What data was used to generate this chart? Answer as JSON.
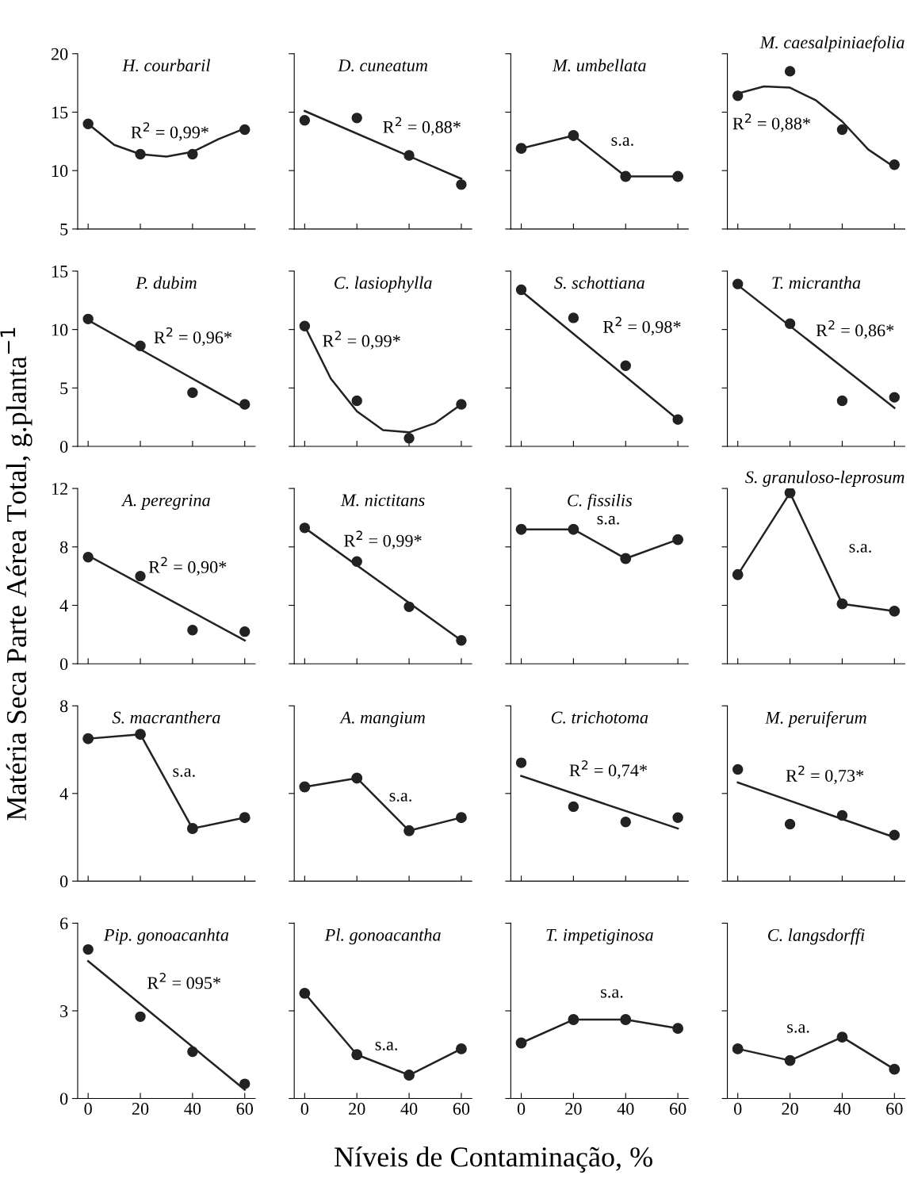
{
  "chart_data": [
    {
      "type": "scatter",
      "title": "H. courbaril",
      "ylabel": "Matéria Seca Parte Aérea Total, g.planta$^{−1}$",
      "x": [
        0,
        20,
        40,
        60
      ],
      "xlim": [
        -4,
        64
      ],
      "xticks": [
        0,
        20,
        40,
        60
      ],
      "ylim": [
        5,
        20
      ],
      "yticks": [
        5,
        10,
        15,
        20
      ],
      "tick_labels": "y",
      "series": [
        {
          "color": "#222222",
          "marker": "circle",
          "values": [
            14.0,
            11.4,
            11.4,
            13.5
          ]
        },
        {
          "type": "line",
          "color": "#222222",
          "x": [
            0,
            10,
            20,
            30,
            40,
            50,
            60
          ],
          "values": [
            14.0,
            12.2,
            11.4,
            11.2,
            11.6,
            12.7,
            13.6
          ]
        }
      ],
      "annotations": [
        "R$^{2}$ = 0,99*"
      ]
    },
    {
      "type": "scatter",
      "title": "D. cuneatum",
      "x": [
        0,
        20,
        40,
        60
      ],
      "xlim": [
        -4,
        64
      ],
      "xticks": [
        0,
        20,
        40,
        60
      ],
      "ylim": [
        5,
        20
      ],
      "yticks": [
        5,
        10,
        15,
        20
      ],
      "tick_labels": false,
      "series": [
        {
          "color": "#222222",
          "marker": "circle",
          "values": [
            14.3,
            14.5,
            11.3,
            8.8
          ]
        },
        {
          "type": "line",
          "color": "#222222",
          "x": [
            0,
            60
          ],
          "values": [
            15.1,
            9.3
          ]
        }
      ],
      "annotations": [
        "R$^{2}$ = 0,88*"
      ]
    },
    {
      "type": "line",
      "title": "M. umbellata",
      "x": [
        0,
        20,
        40,
        60
      ],
      "xlim": [
        -4,
        64
      ],
      "xticks": [
        0,
        20,
        40,
        60
      ],
      "ylim": [
        5,
        20
      ],
      "yticks": [
        5,
        10,
        15,
        20
      ],
      "tick_labels": false,
      "series": [
        {
          "color": "#222222",
          "marker": "circle",
          "values": [
            11.9,
            13.0,
            9.5,
            9.5
          ]
        }
      ],
      "annotations": [
        "s.a."
      ]
    },
    {
      "type": "scatter",
      "title": "M. caesalpiniaefolia",
      "x": [
        0,
        20,
        40,
        60
      ],
      "xlim": [
        -4,
        64
      ],
      "xticks": [
        0,
        20,
        40,
        60
      ],
      "ylim": [
        5,
        20
      ],
      "yticks": [
        5,
        10,
        15,
        20
      ],
      "tick_labels": false,
      "series": [
        {
          "color": "#222222",
          "marker": "circle",
          "values": [
            16.4,
            18.5,
            13.5,
            10.5
          ]
        },
        {
          "type": "line",
          "color": "#222222",
          "x": [
            0,
            10,
            20,
            30,
            40,
            50,
            60
          ],
          "values": [
            16.6,
            17.2,
            17.1,
            16.0,
            14.2,
            11.8,
            10.3
          ]
        }
      ],
      "annotations": [
        "R$^{2}$ = 0,88*"
      ]
    },
    {
      "type": "scatter",
      "title": "P. dubim",
      "x": [
        0,
        20,
        40,
        60
      ],
      "xlim": [
        -4,
        64
      ],
      "xticks": [
        0,
        20,
        40,
        60
      ],
      "ylim": [
        0,
        15
      ],
      "yticks": [
        0,
        5,
        10,
        15
      ],
      "tick_labels": "y",
      "series": [
        {
          "color": "#222222",
          "marker": "circle",
          "values": [
            10.9,
            8.6,
            4.6,
            3.6
          ]
        },
        {
          "type": "line",
          "color": "#222222",
          "x": [
            0,
            60
          ],
          "values": [
            10.8,
            3.3
          ]
        }
      ],
      "annotations": [
        "R$^{2}$ = 0,96*"
      ]
    },
    {
      "type": "scatter",
      "title": "C. lasiophylla",
      "x": [
        0,
        20,
        40,
        60
      ],
      "xlim": [
        -4,
        64
      ],
      "xticks": [
        0,
        20,
        40,
        60
      ],
      "ylim": [
        0,
        15
      ],
      "yticks": [
        0,
        5,
        10,
        15
      ],
      "tick_labels": false,
      "series": [
        {
          "color": "#222222",
          "marker": "circle",
          "values": [
            10.3,
            3.9,
            0.7,
            3.6
          ]
        },
        {
          "type": "line",
          "color": "#222222",
          "x": [
            0,
            10,
            20,
            30,
            40,
            50,
            60
          ],
          "values": [
            10.3,
            5.8,
            3.0,
            1.4,
            1.2,
            2.0,
            3.6
          ]
        }
      ],
      "annotations": [
        "R$^{2}$ = 0,99*"
      ]
    },
    {
      "type": "scatter",
      "title": "S. schottiana",
      "x": [
        0,
        20,
        40,
        60
      ],
      "xlim": [
        -4,
        64
      ],
      "xticks": [
        0,
        20,
        40,
        60
      ],
      "ylim": [
        0,
        15
      ],
      "yticks": [
        0,
        5,
        10,
        15
      ],
      "tick_labels": false,
      "series": [
        {
          "color": "#222222",
          "marker": "circle",
          "values": [
            13.4,
            11.0,
            6.9,
            2.3
          ]
        },
        {
          "type": "line",
          "color": "#222222",
          "x": [
            0,
            60
          ],
          "values": [
            13.3,
            2.3
          ]
        }
      ],
      "annotations": [
        "R$^{2}$ = 0,98*"
      ]
    },
    {
      "type": "scatter",
      "title": "T. micrantha",
      "x": [
        0,
        20,
        40,
        60
      ],
      "xlim": [
        -4,
        64
      ],
      "xticks": [
        0,
        20,
        40,
        60
      ],
      "ylim": [
        0,
        15
      ],
      "yticks": [
        0,
        5,
        10,
        15
      ],
      "tick_labels": false,
      "series": [
        {
          "color": "#222222",
          "marker": "circle",
          "values": [
            13.9,
            10.5,
            3.9,
            4.2
          ]
        },
        {
          "type": "line",
          "color": "#222222",
          "x": [
            0,
            60
          ],
          "values": [
            13.8,
            3.3
          ]
        }
      ],
      "annotations": [
        "R$^{2}$ = 0,86*"
      ]
    },
    {
      "type": "scatter",
      "title": "A. peregrina",
      "x": [
        0,
        20,
        40,
        60
      ],
      "xlim": [
        -4,
        64
      ],
      "xticks": [
        0,
        20,
        40,
        60
      ],
      "ylim": [
        0,
        12
      ],
      "yticks": [
        0,
        4,
        8,
        12
      ],
      "tick_labels": "y",
      "series": [
        {
          "color": "#222222",
          "marker": "circle",
          "values": [
            7.3,
            6.0,
            2.3,
            2.2
          ]
        },
        {
          "type": "line",
          "color": "#222222",
          "x": [
            0,
            60
          ],
          "values": [
            7.4,
            1.6
          ]
        }
      ],
      "annotations": [
        "R$^{2}$ = 0,90*"
      ]
    },
    {
      "type": "scatter",
      "title": "M. nictitans",
      "x": [
        0,
        20,
        40,
        60
      ],
      "xlim": [
        -4,
        64
      ],
      "xticks": [
        0,
        20,
        40,
        60
      ],
      "ylim": [
        0,
        12
      ],
      "yticks": [
        0,
        4,
        8,
        12
      ],
      "tick_labels": false,
      "series": [
        {
          "color": "#222222",
          "marker": "circle",
          "values": [
            9.3,
            7.0,
            3.9,
            1.6
          ]
        },
        {
          "type": "line",
          "color": "#222222",
          "x": [
            0,
            60
          ],
          "values": [
            9.3,
            1.6
          ]
        }
      ],
      "annotations": [
        "R$^{2}$ = 0,99*"
      ]
    },
    {
      "type": "line",
      "title": "C. fissilis",
      "x": [
        0,
        20,
        40,
        60
      ],
      "xlim": [
        -4,
        64
      ],
      "xticks": [
        0,
        20,
        40,
        60
      ],
      "ylim": [
        0,
        12
      ],
      "yticks": [
        0,
        4,
        8,
        12
      ],
      "tick_labels": false,
      "series": [
        {
          "color": "#222222",
          "marker": "circle",
          "values": [
            9.2,
            9.2,
            7.2,
            8.5
          ]
        }
      ],
      "annotations": [
        "s.a."
      ]
    },
    {
      "type": "line",
      "title": "S. granuloso-leprosum",
      "x": [
        0,
        20,
        40,
        60
      ],
      "xlim": [
        -4,
        64
      ],
      "xticks": [
        0,
        20,
        40,
        60
      ],
      "ylim": [
        0,
        12
      ],
      "yticks": [
        0,
        4,
        8,
        12
      ],
      "tick_labels": false,
      "series": [
        {
          "color": "#222222",
          "marker": "circle",
          "values": [
            6.1,
            11.7,
            4.1,
            3.6
          ]
        }
      ],
      "annotations": [
        "s.a."
      ]
    },
    {
      "type": "line",
      "title": "S. macranthera",
      "x": [
        0,
        20,
        40,
        60
      ],
      "xlim": [
        -4,
        64
      ],
      "xticks": [
        0,
        20,
        40,
        60
      ],
      "ylim": [
        0,
        8
      ],
      "yticks": [
        0,
        4,
        8
      ],
      "tick_labels": "y",
      "series": [
        {
          "color": "#222222",
          "marker": "circle",
          "values": [
            6.5,
            6.7,
            2.4,
            2.9
          ]
        }
      ],
      "annotations": [
        "s.a."
      ]
    },
    {
      "type": "line",
      "title": "A. mangium",
      "x": [
        0,
        20,
        40,
        60
      ],
      "xlim": [
        -4,
        64
      ],
      "xticks": [
        0,
        20,
        40,
        60
      ],
      "ylim": [
        0,
        8
      ],
      "yticks": [
        0,
        4,
        8
      ],
      "tick_labels": false,
      "series": [
        {
          "color": "#222222",
          "marker": "circle",
          "values": [
            4.3,
            4.7,
            2.3,
            2.9
          ]
        }
      ],
      "annotations": [
        "s.a."
      ]
    },
    {
      "type": "scatter",
      "title": "C. trichotoma",
      "x": [
        0,
        20,
        40,
        60
      ],
      "xlim": [
        -4,
        64
      ],
      "xticks": [
        0,
        20,
        40,
        60
      ],
      "ylim": [
        0,
        8
      ],
      "yticks": [
        0,
        4,
        8
      ],
      "tick_labels": false,
      "series": [
        {
          "color": "#222222",
          "marker": "circle",
          "values": [
            5.4,
            3.4,
            2.7,
            2.9
          ]
        },
        {
          "type": "line",
          "color": "#222222",
          "x": [
            0,
            60
          ],
          "values": [
            4.8,
            2.4
          ]
        }
      ],
      "annotations": [
        "R$^{2}$ = 0,74*"
      ]
    },
    {
      "type": "scatter",
      "title": "M. peruiferum",
      "x": [
        0,
        20,
        40,
        60
      ],
      "xlim": [
        -4,
        64
      ],
      "xticks": [
        0,
        20,
        40,
        60
      ],
      "ylim": [
        0,
        8
      ],
      "yticks": [
        0,
        4,
        8
      ],
      "tick_labels": false,
      "series": [
        {
          "color": "#222222",
          "marker": "circle",
          "values": [
            5.1,
            2.6,
            3.0,
            2.1
          ]
        },
        {
          "type": "line",
          "color": "#222222",
          "x": [
            0,
            60
          ],
          "values": [
            4.5,
            2.0
          ]
        }
      ],
      "annotations": [
        "R$^{2}$ = 0,73*"
      ]
    },
    {
      "type": "scatter",
      "title": "Pip. gonoacanhta",
      "xlabel": "Níveis de Contaminação, %",
      "x": [
        0,
        20,
        40,
        60
      ],
      "xlim": [
        -4,
        64
      ],
      "xticks": [
        0,
        20,
        40,
        60
      ],
      "ylim": [
        0,
        6
      ],
      "yticks": [
        0,
        3,
        6
      ],
      "series": [
        {
          "color": "#222222",
          "marker": "circle",
          "values": [
            5.1,
            2.8,
            1.6,
            0.5
          ]
        },
        {
          "type": "line",
          "color": "#222222",
          "x": [
            0,
            60
          ],
          "values": [
            4.7,
            0.3
          ]
        }
      ],
      "annotations": [
        "R$^{2}$ = 095*"
      ]
    },
    {
      "type": "line",
      "title": "Pl. gonoacantha",
      "x": [
        0,
        20,
        40,
        60
      ],
      "xlim": [
        -4,
        64
      ],
      "xticks": [
        0,
        20,
        40,
        60
      ],
      "ylim": [
        0,
        6
      ],
      "yticks": [
        0,
        3,
        6
      ],
      "tick_labels": "x",
      "series": [
        {
          "color": "#222222",
          "marker": "circle",
          "values": [
            3.6,
            1.5,
            0.8,
            1.7
          ]
        }
      ],
      "annotations": [
        "s.a."
      ]
    },
    {
      "type": "line",
      "title": "T. impetiginosa",
      "x": [
        0,
        20,
        40,
        60
      ],
      "xlim": [
        -4,
        64
      ],
      "xticks": [
        0,
        20,
        40,
        60
      ],
      "ylim": [
        0,
        6
      ],
      "yticks": [
        0,
        3,
        6
      ],
      "tick_labels": "x",
      "series": [
        {
          "color": "#222222",
          "marker": "circle",
          "values": [
            1.9,
            2.7,
            2.7,
            2.4
          ]
        }
      ],
      "annotations": [
        "s.a."
      ]
    },
    {
      "type": "line",
      "title": "C. langsdorffi",
      "x": [
        0,
        20,
        40,
        60
      ],
      "xlim": [
        -4,
        64
      ],
      "xticks": [
        0,
        20,
        40,
        60
      ],
      "ylim": [
        0,
        6
      ],
      "yticks": [
        0,
        3,
        6
      ],
      "tick_labels": "x",
      "series": [
        {
          "color": "#222222",
          "marker": "circle",
          "values": [
            1.7,
            1.3,
            2.1,
            1.0
          ]
        }
      ],
      "annotations": [
        "s.a."
      ]
    }
  ]
}
